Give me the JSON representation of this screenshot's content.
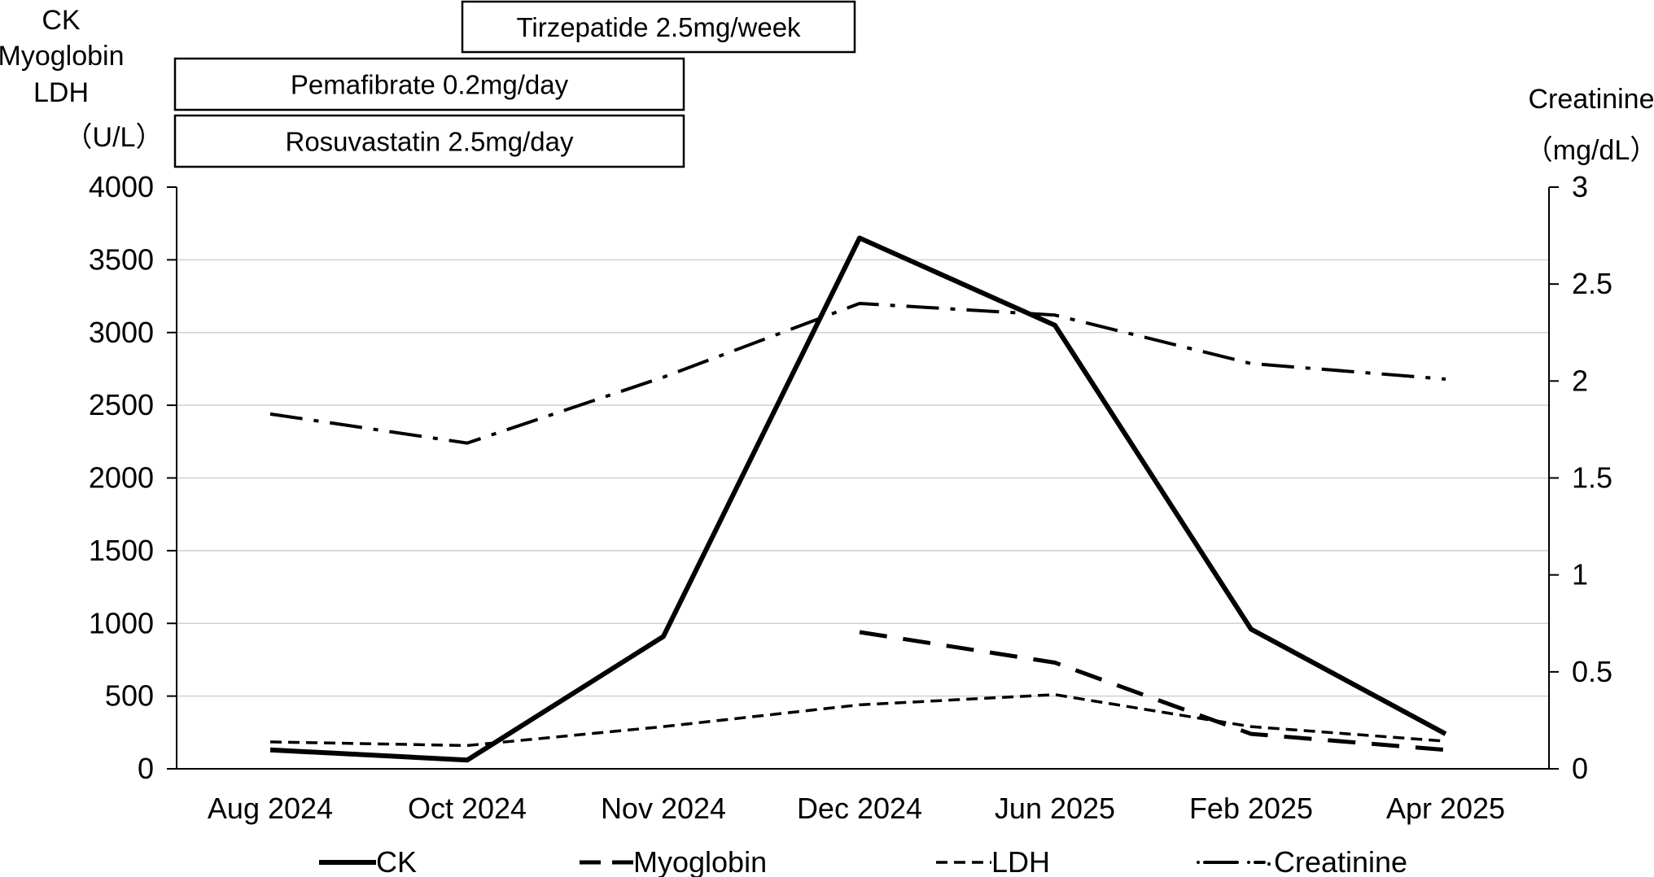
{
  "chart_data": {
    "type": "line",
    "categories": [
      "Aug 2024",
      "Oct 2024",
      "Nov 2024",
      "Dec 2024",
      "Jun 2025",
      "Feb 2025",
      "Apr 2025"
    ],
    "left_axis": {
      "label_lines": [
        "CK",
        "Myoglobin",
        "LDH",
        "（U/L）"
      ],
      "ylim": [
        0,
        4000
      ],
      "ticks": [
        "0",
        "500",
        "1000",
        "1500",
        "2000",
        "2500",
        "3000",
        "3500",
        "4000"
      ]
    },
    "right_axis": {
      "label_lines": [
        "Creatinine",
        "（mg/dL）"
      ],
      "ylim": [
        0,
        3
      ],
      "ticks": [
        "0",
        "0.5",
        "1",
        "1.5",
        "2",
        "2.5",
        "3"
      ]
    },
    "grid": true,
    "series": [
      {
        "name": "CK",
        "axis": "left",
        "style": "solid",
        "values": [
          130,
          60,
          910,
          3650,
          3050,
          960,
          240
        ]
      },
      {
        "name": "Myoglobin",
        "axis": "left",
        "style": "dashed",
        "values": [
          null,
          null,
          null,
          940,
          730,
          240,
          130
        ]
      },
      {
        "name": "LDH",
        "axis": "left",
        "style": "short-dashed",
        "values": [
          185,
          160,
          290,
          440,
          510,
          290,
          190
        ]
      },
      {
        "name": "Creatinine",
        "axis": "right",
        "style": "dash-dot",
        "values": [
          1.83,
          1.68,
          2.02,
          2.4,
          2.34,
          2.09,
          2.01
        ]
      }
    ],
    "legend": {
      "placement": "bottom",
      "entries": [
        "CK",
        "Myoglobin",
        "LDH",
        "·Creatinine"
      ]
    },
    "medications": [
      {
        "label": "Tirzepatide 2.5mg/week",
        "start_category": "Oct 2024",
        "end_category": "Dec 2024"
      },
      {
        "label": "Pemafibrate 0.2mg/day",
        "start_category": "Aug 2024",
        "end_category": "Nov 2024"
      },
      {
        "label": "Rosuvastatin 2.5mg/day",
        "start_category": "Aug 2024",
        "end_category": "Nov 2024"
      }
    ]
  }
}
